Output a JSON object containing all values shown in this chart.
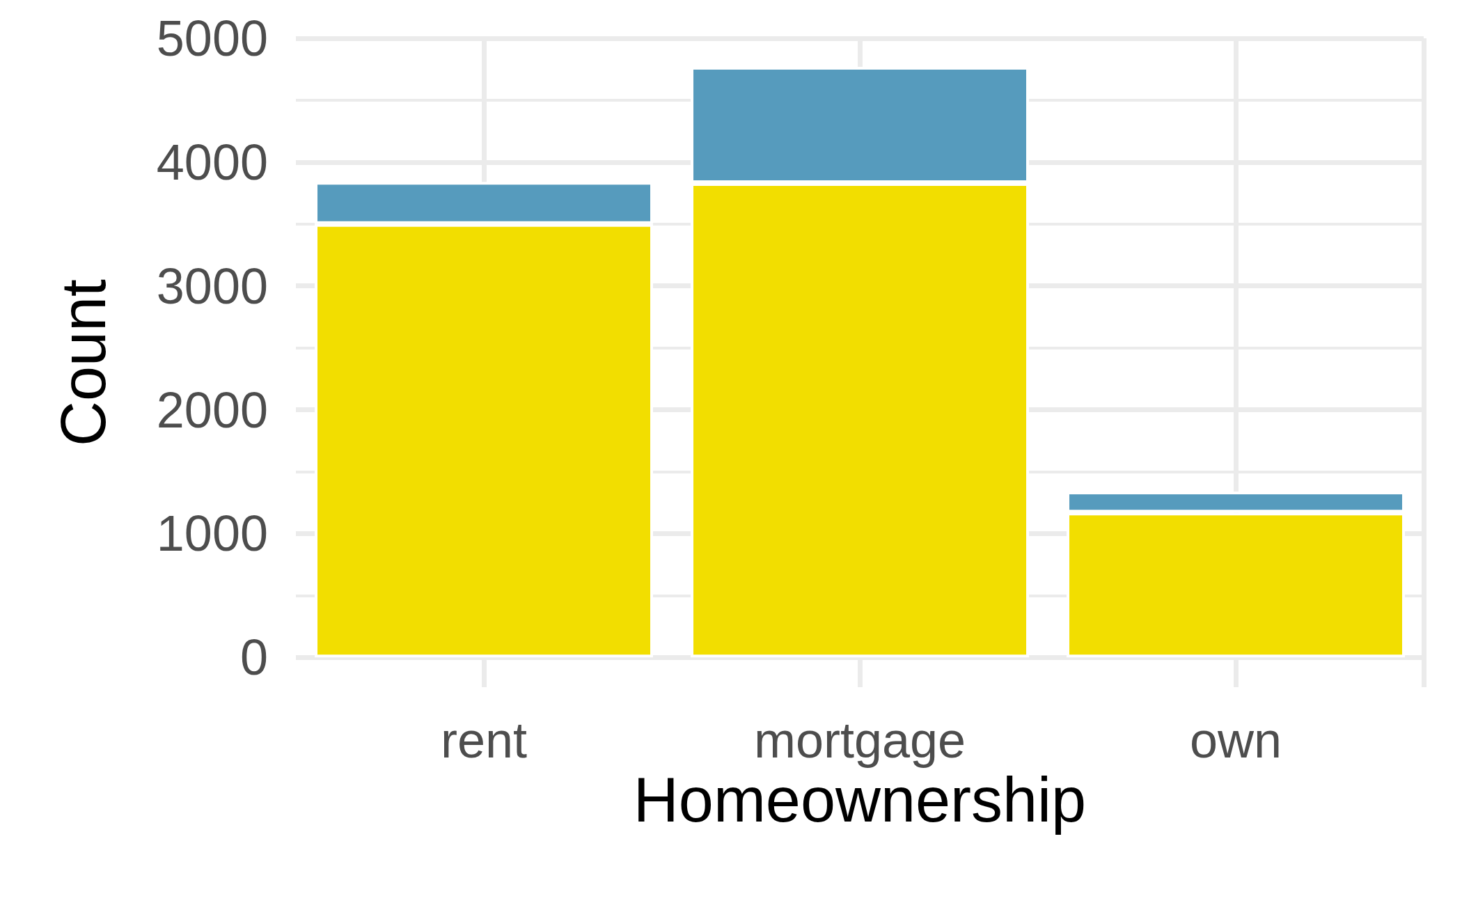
{
  "chart_data": {
    "type": "bar",
    "stacked": true,
    "xlabel": "Homeownership",
    "ylabel": "Count",
    "categories": [
      "rent",
      "mortgage",
      "own"
    ],
    "series": [
      {
        "color": "#f2de00",
        "values": [
          3500,
          3830,
          1170
        ]
      },
      {
        "color": "#569bbd",
        "values": [
          340,
          940,
          170
        ]
      }
    ],
    "ylim": [
      -240,
      5000
    ],
    "yticks": [
      0,
      1000,
      2000,
      3000,
      4000,
      5000
    ],
    "grid": true
  }
}
